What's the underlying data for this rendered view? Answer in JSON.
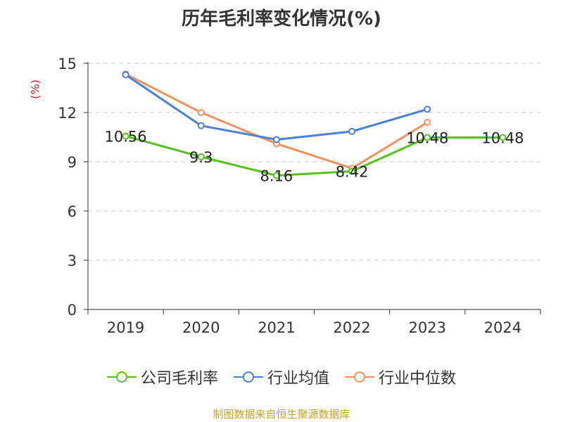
{
  "chart_data": {
    "type": "line",
    "title": "历年毛利率变化情况(%)",
    "xlabel": "",
    "ylabel": "(%)",
    "categories": [
      "2019",
      "2020",
      "2021",
      "2022",
      "2023",
      "2024"
    ],
    "ylim": [
      0,
      15
    ],
    "yticks": [
      0,
      3,
      6,
      9,
      12,
      15
    ],
    "grid": true,
    "legend_position": "bottom",
    "series": [
      {
        "name": "公司毛利率",
        "color": "#52c41a",
        "values": [
          10.56,
          9.3,
          8.16,
          8.42,
          10.48,
          10.48
        ],
        "labels": [
          "10.56",
          "9.3",
          "8.16",
          "8.42",
          "10.48",
          "10.48"
        ]
      },
      {
        "name": "行业均值",
        "color": "#4a7fdc",
        "values": [
          14.3,
          11.2,
          10.35,
          10.85,
          12.2,
          null
        ]
      },
      {
        "name": "行业中位数",
        "color": "#f5915a",
        "values": [
          14.35,
          12.0,
          10.1,
          8.6,
          11.4,
          null
        ]
      }
    ]
  },
  "source": "制图数据来自恒生聚源数据库"
}
